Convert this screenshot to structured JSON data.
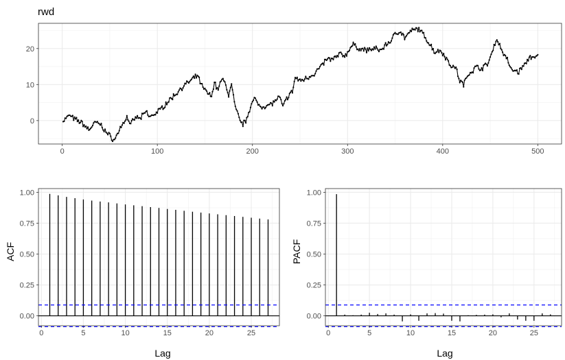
{
  "chart_data": [
    {
      "type": "line",
      "title": "rwd",
      "xlabel": "",
      "ylabel": "",
      "xlim": [
        -25,
        525
      ],
      "ylim": [
        -6.5,
        27
      ],
      "xticks": [
        0,
        100,
        200,
        300,
        400,
        500
      ],
      "yticks": [
        0,
        10,
        20
      ],
      "grid": true,
      "markers": true,
      "anchors": [
        [
          1,
          0
        ],
        [
          8,
          1.5
        ],
        [
          12,
          0.5
        ],
        [
          20,
          -0.5
        ],
        [
          28,
          -2.5
        ],
        [
          35,
          -0.5
        ],
        [
          40,
          -1
        ],
        [
          47,
          -3.5
        ],
        [
          55,
          -5.5
        ],
        [
          60,
          -2.5
        ],
        [
          68,
          1
        ],
        [
          72,
          -1
        ],
        [
          78,
          1
        ],
        [
          82,
          0.5
        ],
        [
          88,
          2.5
        ],
        [
          92,
          1
        ],
        [
          98,
          2
        ],
        [
          103,
          3
        ],
        [
          110,
          5
        ],
        [
          118,
          7
        ],
        [
          125,
          9
        ],
        [
          132,
          10.5
        ],
        [
          135,
          11
        ],
        [
          142,
          12.5
        ],
        [
          148,
          9
        ],
        [
          152,
          8
        ],
        [
          157,
          6.5
        ],
        [
          160,
          11
        ],
        [
          163,
          8.5
        ],
        [
          168,
          11.5
        ],
        [
          172,
          10
        ],
        [
          175,
          7
        ],
        [
          178,
          10
        ],
        [
          182,
          3.5
        ],
        [
          187,
          0
        ],
        [
          190,
          -1
        ],
        [
          193,
          0
        ],
        [
          198,
          4
        ],
        [
          202,
          6
        ],
        [
          208,
          4
        ],
        [
          215,
          4
        ],
        [
          222,
          5
        ],
        [
          228,
          6.5
        ],
        [
          232,
          4
        ],
        [
          238,
          7
        ],
        [
          242,
          8
        ],
        [
          245,
          12
        ],
        [
          250,
          11
        ],
        [
          258,
          12
        ],
        [
          265,
          13
        ],
        [
          272,
          15
        ],
        [
          278,
          17
        ],
        [
          285,
          17
        ],
        [
          292,
          18.5
        ],
        [
          298,
          18
        ],
        [
          302,
          20
        ],
        [
          306,
          21
        ],
        [
          312,
          20
        ],
        [
          320,
          19.5
        ],
        [
          328,
          20
        ],
        [
          335,
          19.5
        ],
        [
          340,
          21
        ],
        [
          345,
          22
        ],
        [
          350,
          24
        ],
        [
          355,
          25
        ],
        [
          360,
          23
        ],
        [
          368,
          25
        ],
        [
          375,
          25.5
        ],
        [
          382,
          23
        ],
        [
          387,
          21
        ],
        [
          392,
          19
        ],
        [
          398,
          19.5
        ],
        [
          402,
          18
        ],
        [
          408,
          15.5
        ],
        [
          414,
          14.5
        ],
        [
          418,
          11
        ],
        [
          422,
          10
        ],
        [
          427,
          13
        ],
        [
          432,
          14
        ],
        [
          436,
          15
        ],
        [
          440,
          14.5
        ],
        [
          444,
          15
        ],
        [
          448,
          16
        ],
        [
          452,
          19
        ],
        [
          456,
          22.5
        ],
        [
          460,
          21
        ],
        [
          464,
          18.5
        ],
        [
          468,
          17
        ],
        [
          472,
          14
        ],
        [
          476,
          14
        ],
        [
          480,
          13.5
        ],
        [
          484,
          15
        ],
        [
          488,
          16
        ],
        [
          492,
          18
        ],
        [
          496,
          17
        ],
        [
          500,
          18
        ]
      ]
    },
    {
      "type": "bar",
      "xlabel": "Lag",
      "ylabel": "ACF",
      "xlim": [
        -0.35,
        28.35
      ],
      "ylim": [
        -0.08,
        1.03
      ],
      "xticks": [
        0,
        5,
        10,
        15,
        20,
        25
      ],
      "yticks": [
        0.0,
        0.25,
        0.5,
        0.75,
        1.0
      ],
      "ytick_labels": [
        "0.00",
        "0.25",
        "0.50",
        "0.75",
        "1.00"
      ],
      "grid": true,
      "conf_limit": 0.088,
      "x": [
        1,
        2,
        3,
        4,
        5,
        6,
        7,
        8,
        9,
        10,
        11,
        12,
        13,
        14,
        15,
        16,
        17,
        18,
        19,
        20,
        21,
        22,
        23,
        24,
        25,
        26,
        27
      ],
      "values": [
        0.987,
        0.975,
        0.963,
        0.952,
        0.942,
        0.933,
        0.925,
        0.918,
        0.91,
        0.902,
        0.895,
        0.888,
        0.88,
        0.873,
        0.865,
        0.858,
        0.85,
        0.843,
        0.836,
        0.829,
        0.822,
        0.815,
        0.808,
        0.801,
        0.794,
        0.787,
        0.78
      ]
    },
    {
      "type": "bar",
      "xlabel": "Lag",
      "ylabel": "PACF",
      "xlim": [
        -0.35,
        28.35
      ],
      "ylim": [
        -0.08,
        1.03
      ],
      "xticks": [
        0,
        5,
        10,
        15,
        20,
        25
      ],
      "yticks": [
        0.0,
        0.25,
        0.5,
        0.75,
        1.0
      ],
      "ytick_labels": [
        "0.00",
        "0.25",
        "0.50",
        "0.75",
        "1.00"
      ],
      "grid": true,
      "conf_limit": 0.088,
      "x": [
        1,
        2,
        3,
        4,
        5,
        6,
        7,
        8,
        9,
        10,
        11,
        12,
        13,
        14,
        15,
        16,
        17,
        18,
        19,
        20,
        21,
        22,
        23,
        24,
        25,
        26,
        27
      ],
      "values": [
        0.985,
        0.01,
        0.005,
        0.01,
        0.025,
        0.015,
        0.02,
        0.01,
        -0.045,
        0.012,
        -0.04,
        0.02,
        0.022,
        0.018,
        -0.04,
        -0.045,
        0.005,
        0.008,
        0.01,
        0.012,
        -0.012,
        0.02,
        -0.03,
        -0.04,
        -0.04,
        0.02,
        0.012
      ]
    }
  ]
}
